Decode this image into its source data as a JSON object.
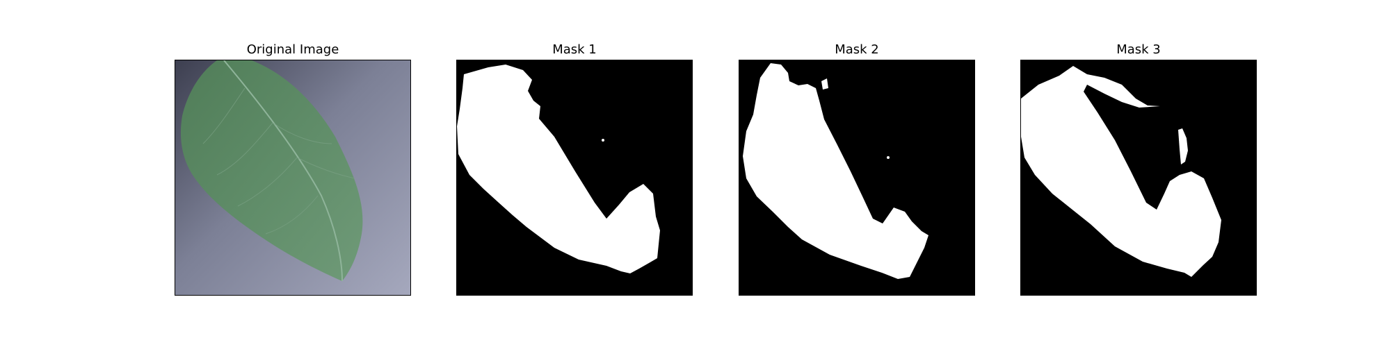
{
  "figure": {
    "panels": [
      {
        "title": "Original Image",
        "kind": "photo"
      },
      {
        "title": "Mask 1",
        "kind": "mask"
      },
      {
        "title": "Mask 2",
        "kind": "mask"
      },
      {
        "title": "Mask 3",
        "kind": "mask"
      }
    ]
  },
  "colors": {
    "background": "#ffffff",
    "mask_background": "#000000",
    "mask_foreground": "#ffffff",
    "leaf_green": "#5f8a69",
    "photo_background": "#9b9fb6"
  }
}
